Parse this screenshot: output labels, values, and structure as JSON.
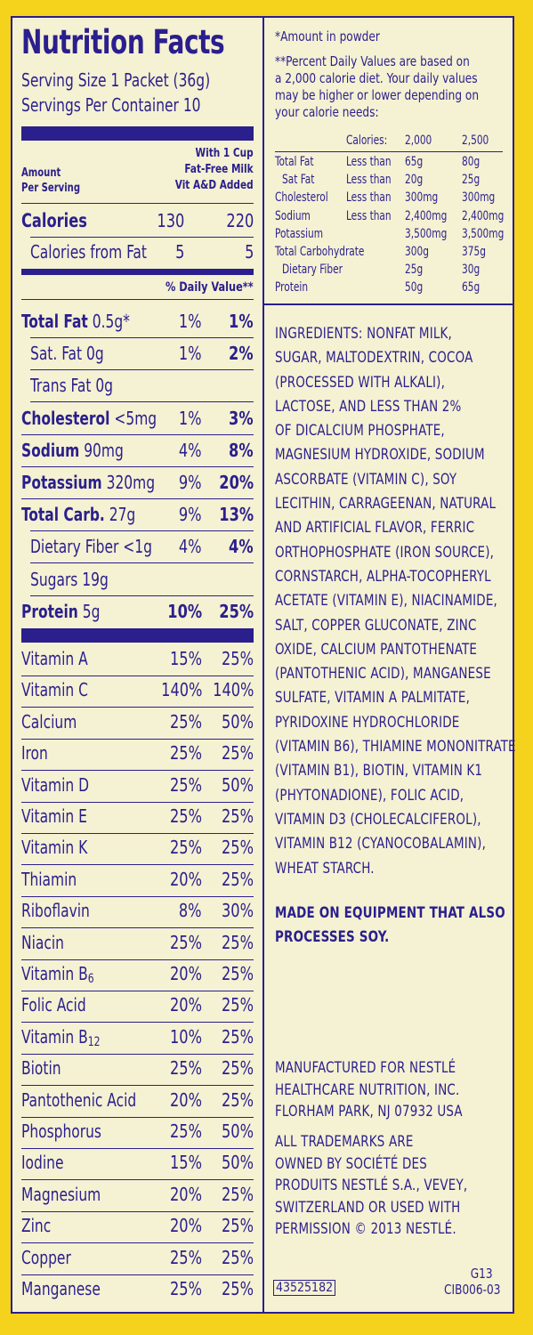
{
  "title": "Nutrition Facts",
  "serving_size": "Serving Size 1 Packet (36g)",
  "servings_per_container": "Servings Per Container 10",
  "col_header_left": [
    "Amount",
    "Per Serving"
  ],
  "col_header_right": [
    "With 1 Cup",
    "Fat-Free Milk",
    "Vit A&D Added"
  ],
  "calories": {
    "label": "Calories",
    "v1": "130",
    "v2": "220"
  },
  "calories_fat": {
    "label": "Calories from Fat",
    "v1": "5",
    "v2": "5"
  },
  "daily_value_header": "% Daily Value**",
  "nutrients": [
    {
      "name": "Total Fat",
      "amt": " 0.5g*",
      "v1": "1%",
      "v2": "1%"
    },
    {
      "name": "Sat. Fat 0g",
      "amt": "",
      "v1": "1%",
      "v2": "2%"
    },
    {
      "name": "Trans Fat 0g",
      "amt": "",
      "v1": "",
      "v2": ""
    },
    {
      "name": "Cholesterol",
      "amt": " <5mg",
      "v1": "1%",
      "v2": "3%"
    },
    {
      "name": "Sodium",
      "amt": " 90mg",
      "v1": "4%",
      "v2": "8%"
    },
    {
      "name": "Potassium",
      "amt": " 320mg",
      "v1": "9%",
      "v2": "20%"
    },
    {
      "name": "Total Carb.",
      "amt": " 27g",
      "v1": "9%",
      "v2": "13%"
    },
    {
      "name": "Dietary Fiber <1g",
      "amt": "",
      "v1": "4%",
      "v2": "4%"
    },
    {
      "name": "Sugars 19g",
      "amt": "",
      "v1": "",
      "v2": ""
    },
    {
      "name": "Protein",
      "amt": " 5g",
      "v1": "10%",
      "v2": "25%"
    }
  ],
  "vitamins": [
    {
      "name": "Vitamin A",
      "v1": "15%",
      "v2": "25%"
    },
    {
      "name": "Vitamin C",
      "v1": "140%",
      "v2": "140%"
    },
    {
      "name": "Calcium",
      "v1": "25%",
      "v2": "50%"
    },
    {
      "name": "Iron",
      "v1": "25%",
      "v2": "25%"
    },
    {
      "name": "Vitamin D",
      "v1": "25%",
      "v2": "50%"
    },
    {
      "name": "Vitamin E",
      "v1": "25%",
      "v2": "25%"
    },
    {
      "name": "Vitamin K",
      "v1": "25%",
      "v2": "25%"
    },
    {
      "name": "Thiamin",
      "v1": "20%",
      "v2": "25%"
    },
    {
      "name": "Riboflavin",
      "v1": "8%",
      "v2": "30%"
    },
    {
      "name": "Niacin",
      "v1": "25%",
      "v2": "25%"
    },
    {
      "name": "Vitamin B6",
      "v1": "20%",
      "v2": "25%"
    },
    {
      "name": "Folic Acid",
      "v1": "20%",
      "v2": "25%"
    },
    {
      "name": "Vitamin B12",
      "v1": "10%",
      "v2": "25%"
    },
    {
      "name": "Biotin",
      "v1": "25%",
      "v2": "25%"
    },
    {
      "name": "Pantothenic Acid",
      "v1": "20%",
      "v2": "25%"
    },
    {
      "name": "Phosphorus",
      "v1": "25%",
      "v2": "50%"
    },
    {
      "name": "Iodine",
      "v1": "15%",
      "v2": "50%"
    },
    {
      "name": "Magnesium",
      "v1": "20%",
      "v2": "25%"
    },
    {
      "name": "Zinc",
      "v1": "20%",
      "v2": "25%"
    },
    {
      "name": "Copper",
      "v1": "25%",
      "v2": "25%"
    },
    {
      "name": "Manganese",
      "v1": "25%",
      "v2": "25%"
    }
  ],
  "footnote_amount": "*Amount in powder",
  "footnote_dv": [
    "**Percent Daily Values are based on",
    "a 2,000 calorie diet. Your daily values",
    "may be higher or lower depending on",
    "your calorie needs:"
  ],
  "dv_table": {
    "header": [
      "Calories:",
      "2,000",
      "2,500"
    ],
    "rows": [
      [
        "Total Fat",
        "Less than",
        "65g",
        "80g"
      ],
      [
        "Sat Fat",
        "Less than",
        "20g",
        "25g"
      ],
      [
        "Cholesterol",
        "Less than",
        "300mg",
        "300mg"
      ],
      [
        "Sodium",
        "Less than",
        "2,400mg",
        "2,400mg"
      ],
      [
        "Potassium",
        "",
        "3,500mg",
        "3,500mg"
      ],
      [
        "Total Carbohydrate",
        "",
        "300g",
        "375g"
      ],
      [
        "Dietary Fiber",
        "",
        "25g",
        "30g"
      ],
      [
        "Protein",
        "",
        "50g",
        "65g"
      ]
    ]
  },
  "ingredients_lines": [
    "INGREDIENTS: NONFAT MILK,",
    "SUGAR, MALTODEXTRIN, COCOA",
    "(PROCESSED WITH ALKALI),",
    "LACTOSE, AND LESS THAN 2%",
    "OF DICALCIUM PHOSPHATE,",
    "MAGNESIUM HYDROXIDE, SODIUM",
    "ASCORBATE (VITAMIN C), SOY",
    "LECITHIN, CARRAGEENAN, NATURAL",
    "AND ARTIFICIAL FLAVOR, FERRIC",
    "ORTHOPHOSPHATE (IRON SOURCE),",
    "CORNSTARCH, ALPHA-TOCOPHERYL",
    "ACETATE (VITAMIN E), NIACINAMIDE,",
    "SALT, COPPER GLUCONATE, ZINC",
    "OXIDE, CALCIUM PANTOTHENATE",
    "(PANTOTHENIC ACID), MANGANESE",
    "SULFATE, VITAMIN A PALMITATE,",
    "PYRIDOXINE HYDROCHLORIDE",
    "(VITAMIN B6), THIAMINE MONONITRATE",
    "(VITAMIN B1), BIOTIN, VITAMIN K1",
    "(PHYTONADIONE), FOLIC ACID,",
    "VITAMIN D3 (CHOLECALCIFEROL),",
    "VITAMIN B12 (CYANOCOBALAMIN),",
    "WHEAT STARCH."
  ],
  "allergen_lines": [
    "MADE ON EQUIPMENT THAT ALSO",
    "PROCESSES SOY."
  ],
  "manufacturer_lines": [
    "MANUFACTURED FOR NESTLÉ",
    "HEALTHCARE NUTRITION, INC.",
    "FLORHAM PARK, NJ 07932 USA"
  ],
  "trademark_lines": [
    "ALL TRADEMARKS ARE",
    "OWNED BY SOCIÉTÉ DES",
    "PRODUITS NESTLÉ S.A., VEVEY,",
    "SWITZERLAND OR USED WITH",
    "PERMISSION © 2013 NESTLÉ."
  ],
  "code_barcode": "43525182",
  "code_g13": "G13",
  "code_cib": "CIB006-03"
}
